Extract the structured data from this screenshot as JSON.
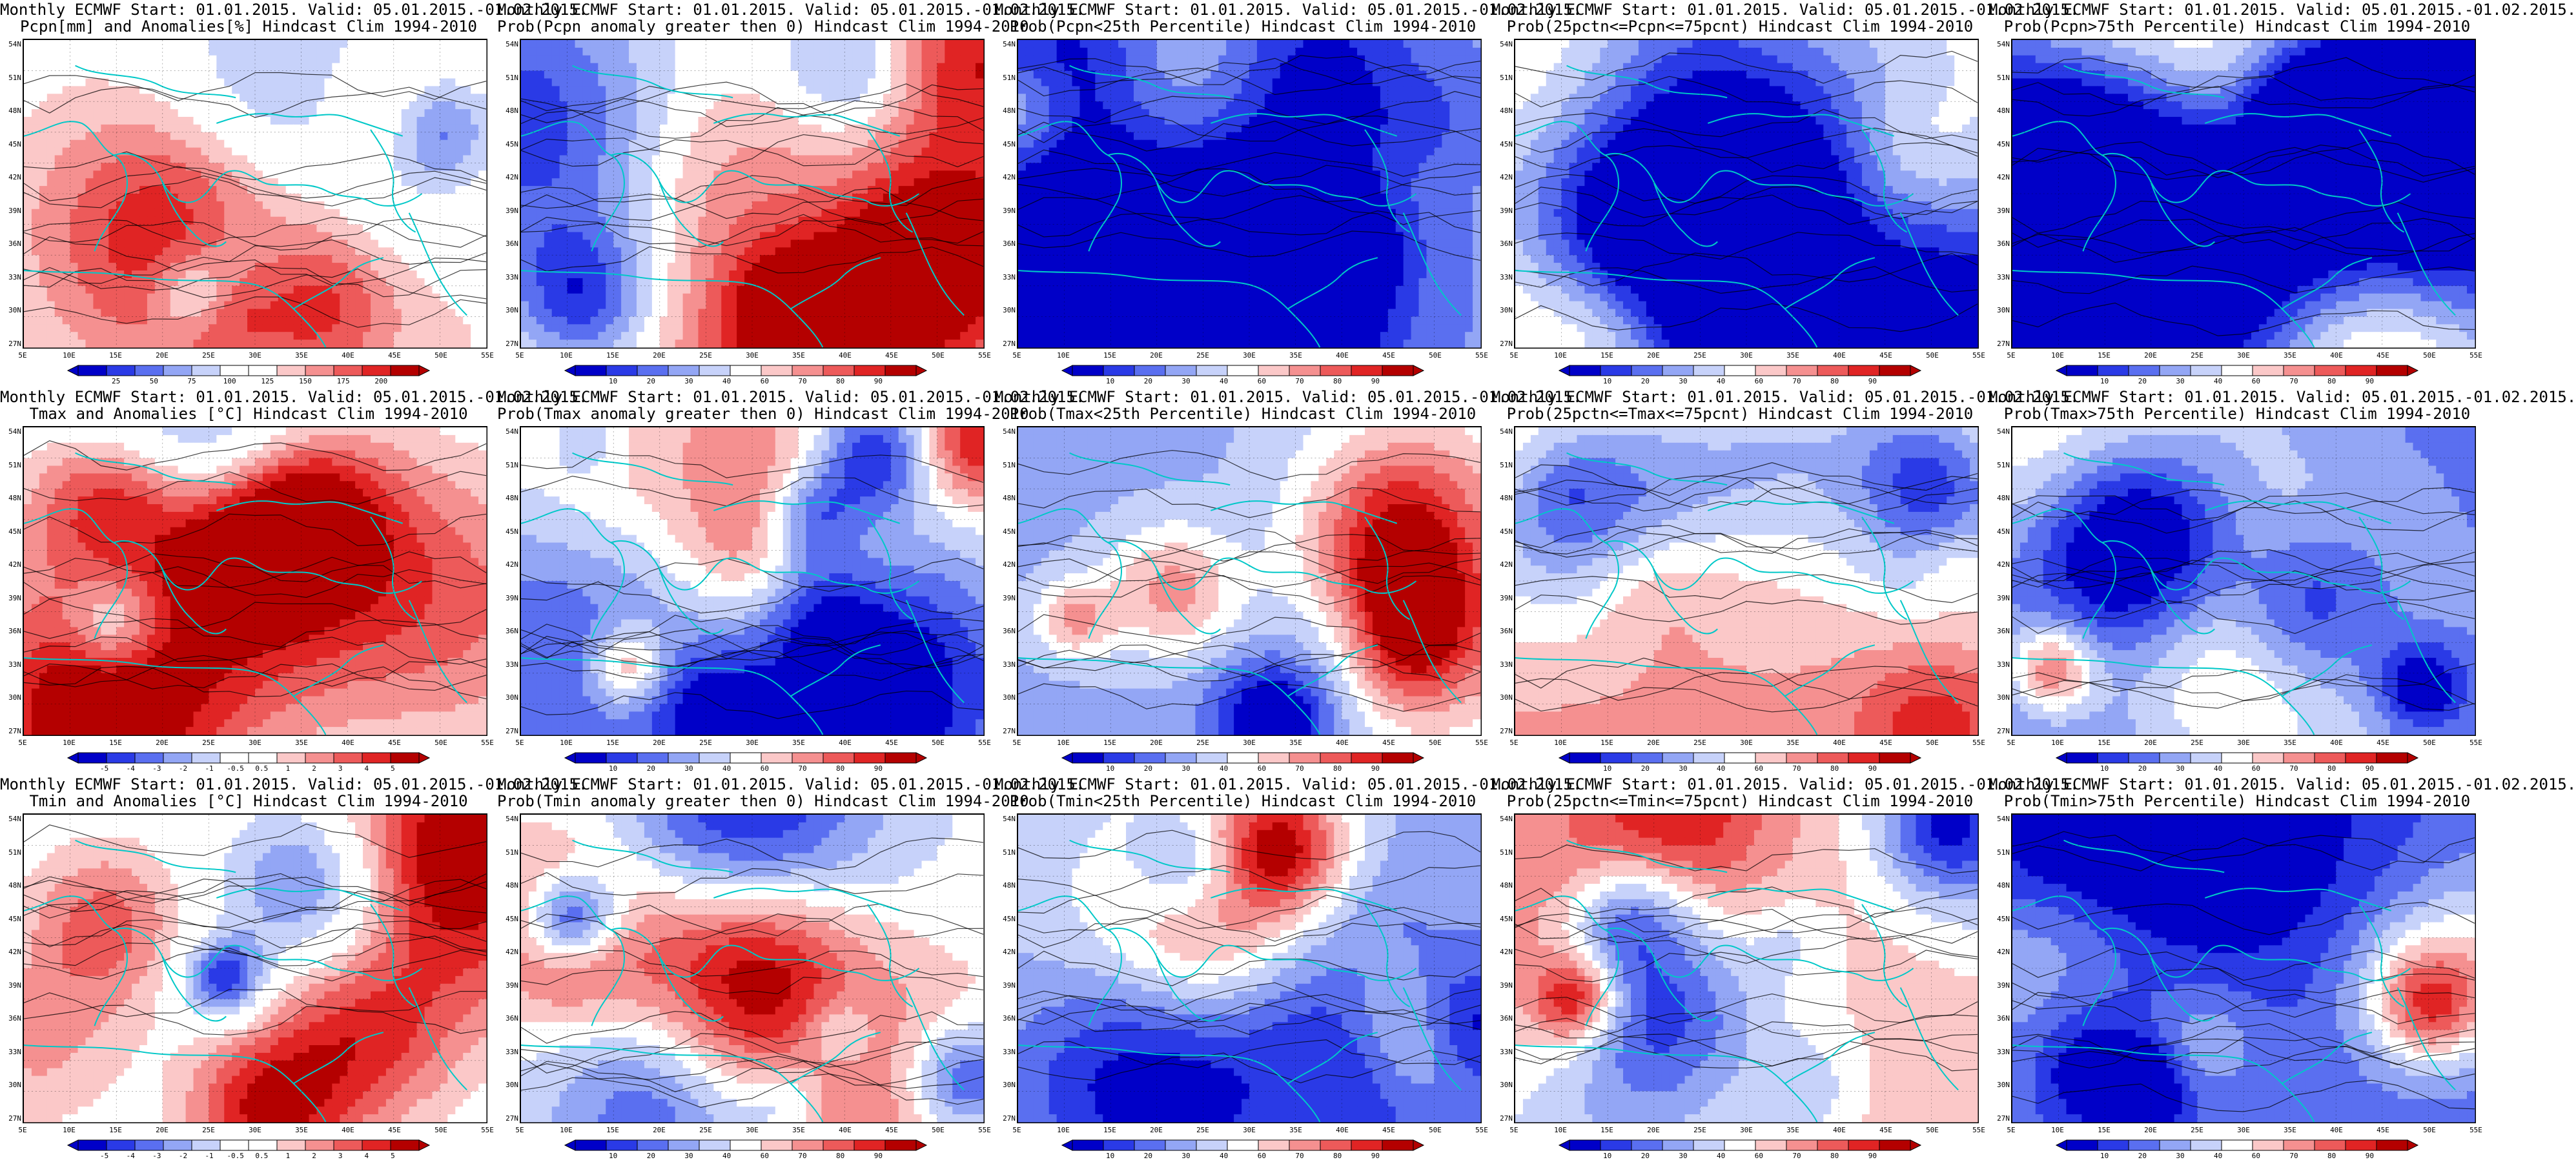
{
  "palettes": {
    "bwr": [
      "#0000c8",
      "#2a3ae6",
      "#5a6ff0",
      "#93a6f5",
      "#c7d2fa",
      "#ffffff",
      "#ffffff",
      "#fbc8c8",
      "#f59090",
      "#ed5a5a",
      "#e02424",
      "#b40000"
    ],
    "bwr_sym": [
      "#0000c8",
      "#2a3ae6",
      "#5a6ff0",
      "#93a6f5",
      "#c7d2fa",
      "#ffffff",
      "#fbc8c8",
      "#f59090",
      "#ed5a5a",
      "#e02424",
      "#b40000"
    ],
    "coast": "#00c8c8",
    "contour": "#000000"
  },
  "lat_labels": [
    "54N",
    "51N",
    "48N",
    "45N",
    "42N",
    "39N",
    "36N",
    "33N",
    "30N",
    "27N"
  ],
  "lon_labels": [
    "5E",
    "10E",
    "15E",
    "20E",
    "25E",
    "30E",
    "35E",
    "40E",
    "45E",
    "50E",
    "55E"
  ],
  "panels": [
    {
      "id": "r1c1",
      "title1": "Monthly ECMWF Start: 01.01.2015. Valid: 05.01.2015.-01.02.2015.",
      "title2": "Pcpn[mm] and Anomalies[%] Hindcast Clim 1994-2010",
      "cbar": "bwr",
      "cbar_labels": [
        "25",
        "50",
        "75",
        "100",
        "125",
        "150",
        "175",
        "200"
      ],
      "seed": 11,
      "bias": 0.05
    },
    {
      "id": "r1c2",
      "title1": "Monthly ECMWF Start: 01.01.2015. Valid: 05.01.2015.-01.02.2015.",
      "title2": "Prob(Pcpn anomaly greater then 0) Hindcast Clim 1994-2010",
      "cbar": "bwr_sym",
      "cbar_labels": [
        "10",
        "20",
        "30",
        "40",
        "60",
        "70",
        "80",
        "90"
      ],
      "seed": 12,
      "bias": 0.05
    },
    {
      "id": "r1c3",
      "title1": "Monthly ECMWF Start: 01.01.2015. Valid: 05.01.2015.-01.02.2015.",
      "title2": "Prob(Pcpn<25th Percentile) Hindcast Clim 1994-2010",
      "cbar": "bwr_sym",
      "cbar_labels": [
        "10",
        "20",
        "30",
        "40",
        "60",
        "70",
        "80",
        "90"
      ],
      "seed": 13,
      "bias": -0.45
    },
    {
      "id": "r1c4",
      "title1": "Monthly ECMWF Start: 01.01.2015. Valid: 05.01.2015.-01.02.2015.",
      "title2": "Prob(25pctn<=Pcpn<=75pcnt) Hindcast Clim 1994-2010",
      "cbar": "bwr_sym",
      "cbar_labels": [
        "10",
        "20",
        "30",
        "40",
        "60",
        "70",
        "80",
        "90"
      ],
      "seed": 14,
      "bias": 0.05
    },
    {
      "id": "r1c5",
      "title1": "Monthly ECMWF Start: 01.01.2015. Valid: 05.01.2015.-01.02.2015.",
      "title2": "Prob(Pcpn>75th Percentile) Hindcast Clim 1994-2010",
      "cbar": "bwr_sym",
      "cbar_labels": [
        "10",
        "20",
        "30",
        "40",
        "60",
        "70",
        "80",
        "90"
      ],
      "seed": 15,
      "bias": -0.25
    },
    {
      "id": "r2c1",
      "title1": "Monthly ECMWF Start: 01.01.2015. Valid: 05.01.2015.-01.02.2015.",
      "title2": "Tmax and Anomalies [°C] Hindcast Clim 1994-2010",
      "cbar": "bwr",
      "cbar_labels": [
        "-5",
        "-4",
        "-3",
        "-2",
        "-1",
        "-0.5",
        "0.5",
        "1",
        "2",
        "3",
        "4",
        "5"
      ],
      "seed": 21,
      "bias": 0.0
    },
    {
      "id": "r2c2",
      "title1": "Monthly ECMWF Start: 01.01.2015. Valid: 05.01.2015.-01.02.2015.",
      "title2": "Prob(Tmax anomaly greater then 0) Hindcast Clim 1994-2010",
      "cbar": "bwr_sym",
      "cbar_labels": [
        "10",
        "20",
        "30",
        "40",
        "60",
        "70",
        "80",
        "90"
      ],
      "seed": 22,
      "bias": -0.05
    },
    {
      "id": "r2c3",
      "title1": "Monthly ECMWF Start: 01.01.2015. Valid: 05.01.2015.-01.02.2015.",
      "title2": "Prob(Tmax<25th Percentile) Hindcast Clim 1994-2010",
      "cbar": "bwr_sym",
      "cbar_labels": [
        "10",
        "20",
        "30",
        "40",
        "60",
        "70",
        "80",
        "90"
      ],
      "seed": 23,
      "bias": -0.35
    },
    {
      "id": "r2c4",
      "title1": "Monthly ECMWF Start: 01.01.2015. Valid: 05.01.2015.-01.02.2015.",
      "title2": "Prob(25pctn<=Tmax<=75pcnt) Hindcast Clim 1994-2010",
      "cbar": "bwr_sym",
      "cbar_labels": [
        "10",
        "20",
        "30",
        "40",
        "60",
        "70",
        "80",
        "90"
      ],
      "seed": 24,
      "bias": 0.3
    },
    {
      "id": "r2c5",
      "title1": "Monthly ECMWF Start: 01.01.2015. Valid: 05.01.2015.-01.02.2015.",
      "title2": "Prob(Tmax>75th Percentile) Hindcast Clim 1994-2010",
      "cbar": "bwr_sym",
      "cbar_labels": [
        "10",
        "20",
        "30",
        "40",
        "60",
        "70",
        "80",
        "90"
      ],
      "seed": 25,
      "bias": -0.6
    },
    {
      "id": "r3c1",
      "title1": "Monthly ECMWF Start: 01.01.2015. Valid: 05.01.2015.-01.02.2015.",
      "title2": "Tmin and Anomalies [°C] Hindcast Clim 1994-2010",
      "cbar": "bwr",
      "cbar_labels": [
        "-5",
        "-4",
        "-3",
        "-2",
        "-1",
        "-0.5",
        "0.5",
        "1",
        "2",
        "3",
        "4",
        "5"
      ],
      "seed": 31,
      "bias": 0.0
    },
    {
      "id": "r3c2",
      "title1": "Monthly ECMWF Start: 01.01.2015. Valid: 05.01.2015.-01.02.2015.",
      "title2": "Prob(Tmin anomaly greater then 0) Hindcast Clim 1994-2010",
      "cbar": "bwr_sym",
      "cbar_labels": [
        "10",
        "20",
        "30",
        "40",
        "60",
        "70",
        "80",
        "90"
      ],
      "seed": 32,
      "bias": -0.05
    },
    {
      "id": "r3c3",
      "title1": "Monthly ECMWF Start: 01.01.2015. Valid: 05.01.2015.-01.02.2015.",
      "title2": "Prob(Tmin<25th Percentile) Hindcast Clim 1994-2010",
      "cbar": "bwr_sym",
      "cbar_labels": [
        "10",
        "20",
        "30",
        "40",
        "60",
        "70",
        "80",
        "90"
      ],
      "seed": 33,
      "bias": -0.35
    },
    {
      "id": "r3c4",
      "title1": "Monthly ECMWF Start: 01.01.2015. Valid: 05.01.2015.-01.02.2015.",
      "title2": "Prob(25pctn<=Tmin<=75pcnt) Hindcast Clim 1994-2010",
      "cbar": "bwr_sym",
      "cbar_labels": [
        "10",
        "20",
        "30",
        "40",
        "60",
        "70",
        "80",
        "90"
      ],
      "seed": 34,
      "bias": 0.25
    },
    {
      "id": "r3c5",
      "title1": "Monthly ECMWF Start: 01.01.2015. Valid: 05.01.2015.-01.02.2015.",
      "title2": "Prob(Tmin>75th Percentile) Hindcast Clim 1994-2010",
      "cbar": "bwr_sym",
      "cbar_labels": [
        "10",
        "20",
        "30",
        "40",
        "60",
        "70",
        "80",
        "90"
      ],
      "seed": 35,
      "bias": -0.6
    }
  ]
}
